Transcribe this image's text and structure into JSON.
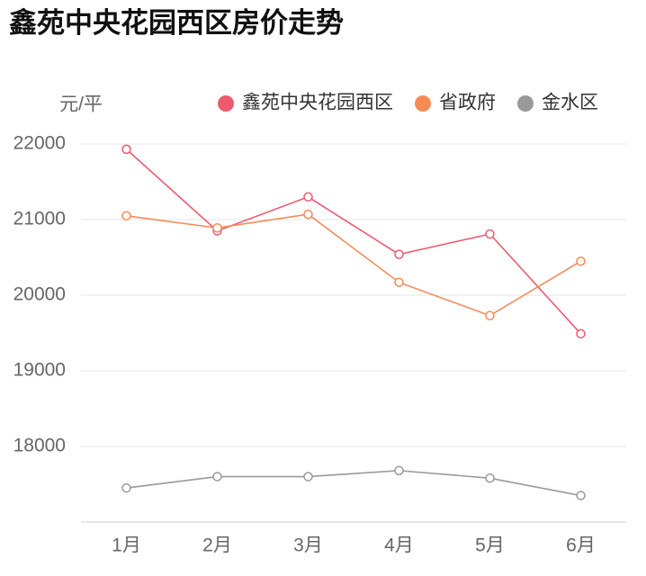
{
  "chart_data": {
    "type": "line",
    "title": "鑫苑中央花园西区房价走势",
    "y_label": "元/平",
    "categories": [
      "1月",
      "2月",
      "3月",
      "4月",
      "5月",
      "6月"
    ],
    "series": [
      {
        "name": "鑫苑中央花园西区",
        "color": "#ee5a6f",
        "values": [
          21930,
          20850,
          21300,
          20540,
          20810,
          19490
        ]
      },
      {
        "name": "省政府",
        "color": "#f58a55",
        "values": [
          21050,
          20890,
          21070,
          20170,
          19730,
          20450
        ]
      },
      {
        "name": "金水区",
        "color": "#999999",
        "values": [
          17450,
          17600,
          17600,
          17680,
          17580,
          17350
        ]
      }
    ],
    "ylim": [
      17000,
      22000
    ],
    "yticks": [
      18000,
      19000,
      20000,
      21000,
      22000
    ],
    "grid": true
  }
}
